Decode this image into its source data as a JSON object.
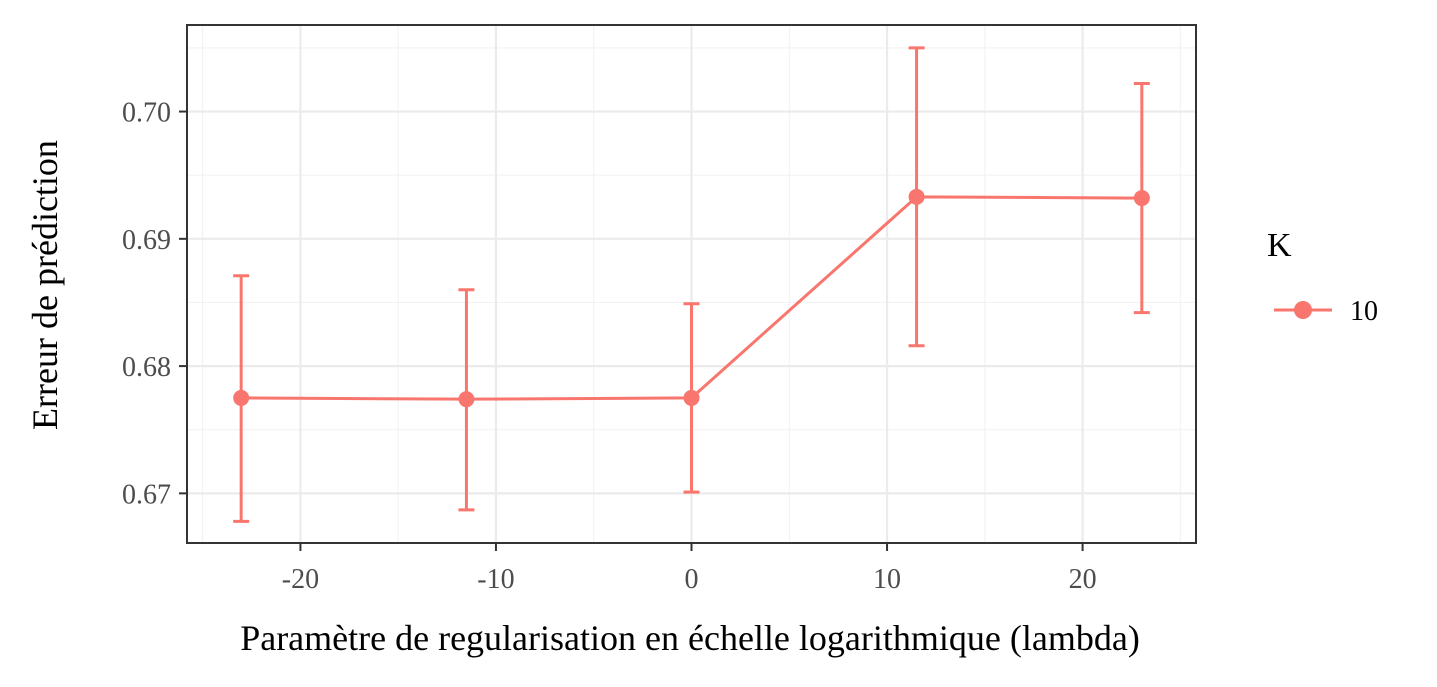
{
  "chart_data": {
    "type": "line",
    "xlabel": "Paramètre de regularisation en échelle logarithmique (lambda)",
    "ylabel": "Erreur de prédiction",
    "xlim": [
      -25.8,
      25.8
    ],
    "ylim": [
      0.6661,
      0.7068
    ],
    "x_ticks": [
      -20,
      -10,
      0,
      10,
      20
    ],
    "x_tick_labels": [
      "-20",
      "-10",
      "0",
      "10",
      "20"
    ],
    "y_ticks": [
      0.67,
      0.68,
      0.69,
      0.7
    ],
    "y_tick_labels": [
      "0.67",
      "0.68",
      "0.69",
      "0.70"
    ],
    "grid": true,
    "legend_position": "right",
    "legend_title": "K",
    "series": [
      {
        "name": "10",
        "color": "#F8766D",
        "x": [
          -23.03,
          -11.51,
          0,
          11.51,
          23.03
        ],
        "y": [
          0.6775,
          0.6774,
          0.6775,
          0.6933,
          0.6932
        ],
        "ymin": [
          0.6678,
          0.6687,
          0.6701,
          0.6816,
          0.6842
        ],
        "ymax": [
          0.6871,
          0.686,
          0.6849,
          0.705,
          0.7022
        ]
      }
    ]
  }
}
